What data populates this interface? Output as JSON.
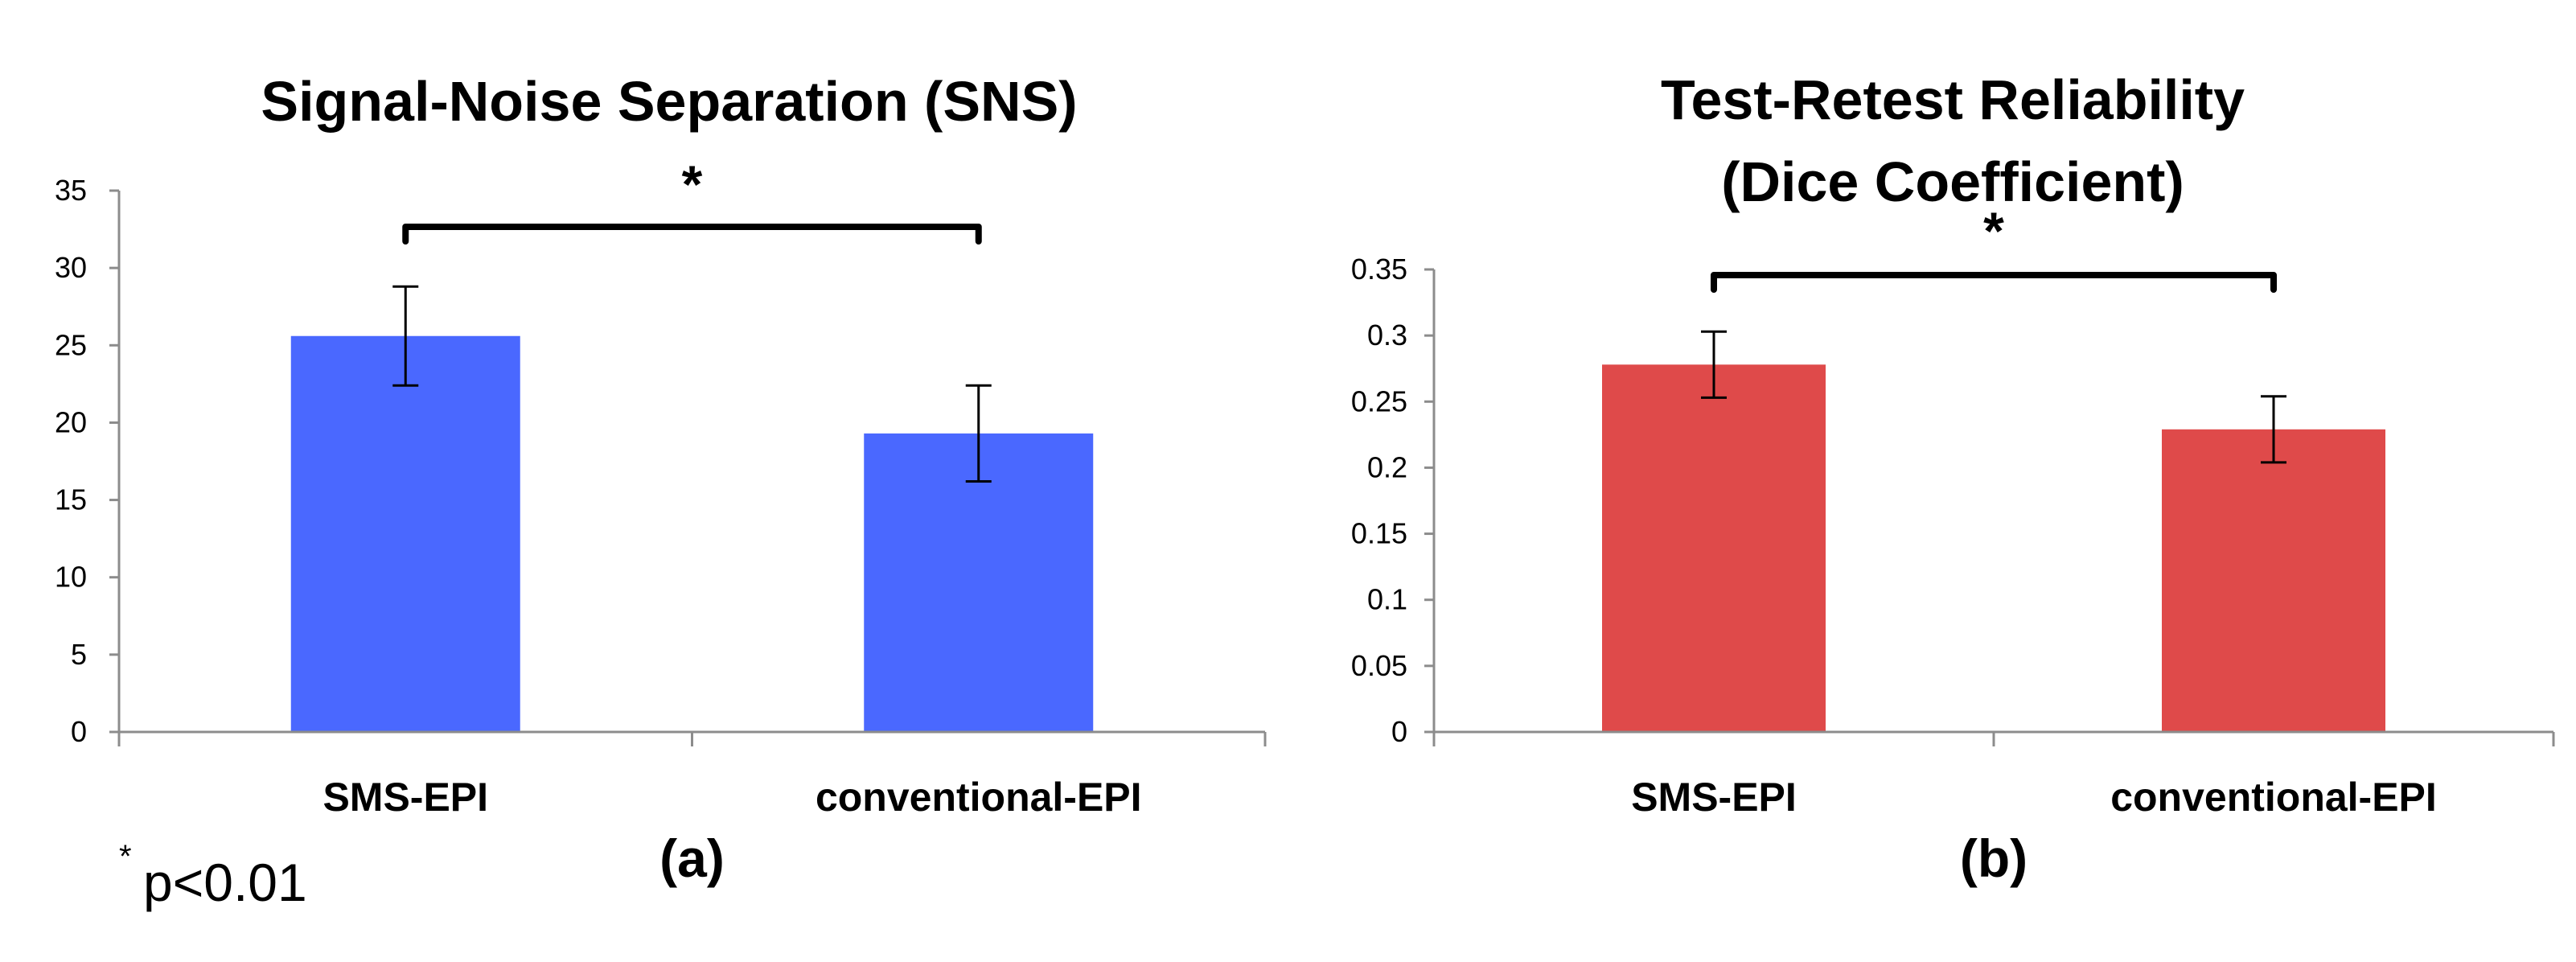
{
  "footnote": {
    "symbol": "*",
    "text": "p<0.01"
  },
  "chart_data": [
    {
      "type": "bar",
      "title": "Signal-Noise Separation (SNS)",
      "title_lines": [
        "Signal-Noise Separation (SNS)"
      ],
      "panel_label": "(a)",
      "categories": [
        "SMS-EPI",
        "conventional-EPI"
      ],
      "values": [
        25.6,
        19.3
      ],
      "errors": [
        3.2,
        3.1
      ],
      "color": "#4A68FF",
      "ylim": [
        0,
        35
      ],
      "yticks": [
        0,
        5,
        10,
        15,
        20,
        25,
        30,
        35
      ],
      "ytick_labels": [
        "0",
        "5",
        "10",
        "15",
        "20",
        "25",
        "30",
        "35"
      ],
      "significance": {
        "label": "*",
        "between": [
          0,
          1
        ]
      },
      "xlabel": "",
      "ylabel": "",
      "grid": false
    },
    {
      "type": "bar",
      "title": "Test-Retest Reliability (Dice Coefficient)",
      "title_lines": [
        "Test-Retest Reliability",
        "(Dice Coefficient)"
      ],
      "panel_label": "(b)",
      "categories": [
        "SMS-EPI",
        "conventional-EPI"
      ],
      "values": [
        0.278,
        0.229
      ],
      "errors": [
        0.025,
        0.025
      ],
      "color": "#DF4A4A",
      "ylim": [
        0,
        0.35
      ],
      "yticks": [
        0,
        0.05,
        0.1,
        0.15,
        0.2,
        0.25,
        0.3,
        0.35
      ],
      "ytick_labels": [
        "0",
        "0.05",
        "0.1",
        "0.15",
        "0.2",
        "0.25",
        "0.3",
        "0.35"
      ],
      "significance": {
        "label": "*",
        "between": [
          0,
          1
        ]
      },
      "xlabel": "",
      "ylabel": "",
      "grid": false
    }
  ]
}
